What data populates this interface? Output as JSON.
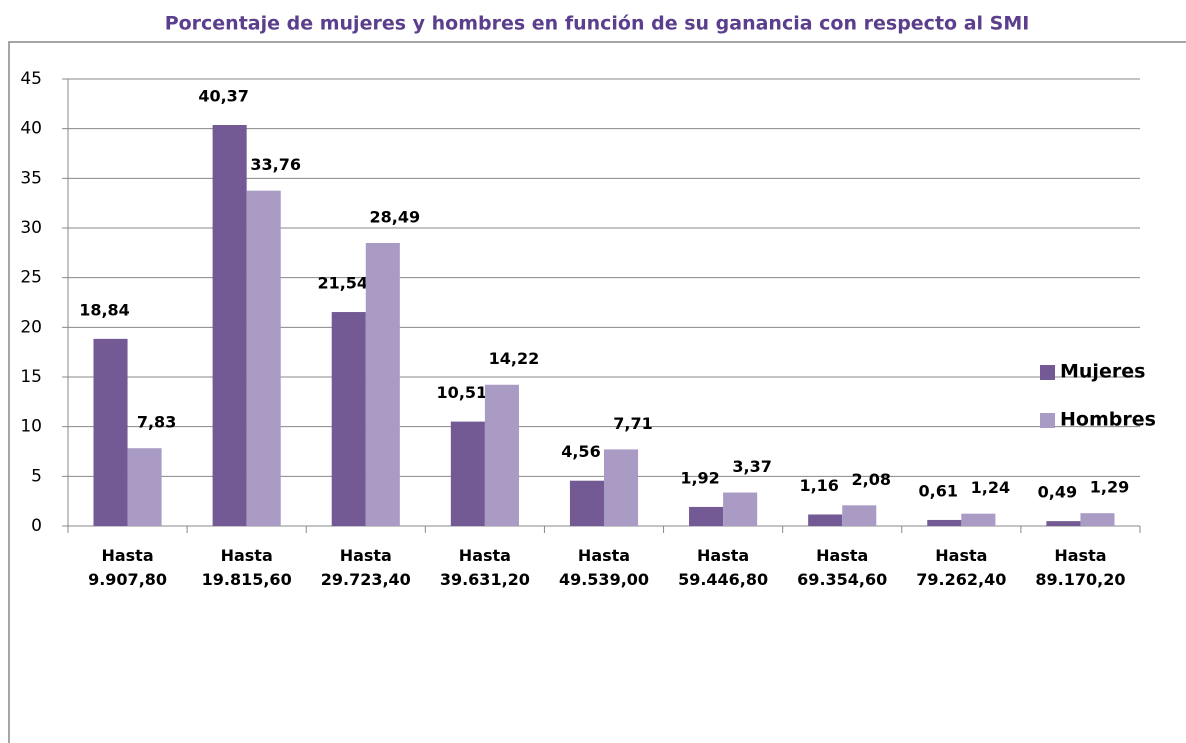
{
  "chart_data": {
    "type": "bar",
    "title": "Porcentaje de mujeres y hombres en función de su ganancia con respecto al SMI",
    "categories": [
      "Hasta 9.907,80",
      "Hasta 19.815,60",
      "Hasta 29.723,40",
      "Hasta 39.631,20",
      "Hasta 49.539,00",
      "Hasta 59.446,80",
      "Hasta 69.354,60",
      "Hasta 79.262,40",
      "Hasta 89.170,20"
    ],
    "series": [
      {
        "name": "Mujeres",
        "color": "#735a94",
        "values": [
          18.84,
          40.37,
          21.54,
          10.51,
          4.56,
          1.92,
          1.16,
          0.61,
          0.49
        ],
        "value_labels": [
          "18,84",
          "40,37",
          "21,54",
          "10,51",
          "4,56",
          "1,92",
          "1,16",
          "0,61",
          "0,49"
        ]
      },
      {
        "name": "Hombres",
        "color": "#a99bc4",
        "values": [
          7.83,
          33.76,
          28.49,
          14.22,
          7.71,
          3.37,
          2.08,
          1.24,
          1.29
        ],
        "value_labels": [
          "7,83",
          "33,76",
          "28,49",
          "14,22",
          "7,71",
          "3,37",
          "2,08",
          "1,24",
          "1,29"
        ]
      }
    ],
    "ylim": [
      0,
      45
    ],
    "yticks": [
      0,
      5,
      10,
      15,
      20,
      25,
      30,
      35,
      40,
      45
    ],
    "grid": true,
    "legend": "right"
  }
}
